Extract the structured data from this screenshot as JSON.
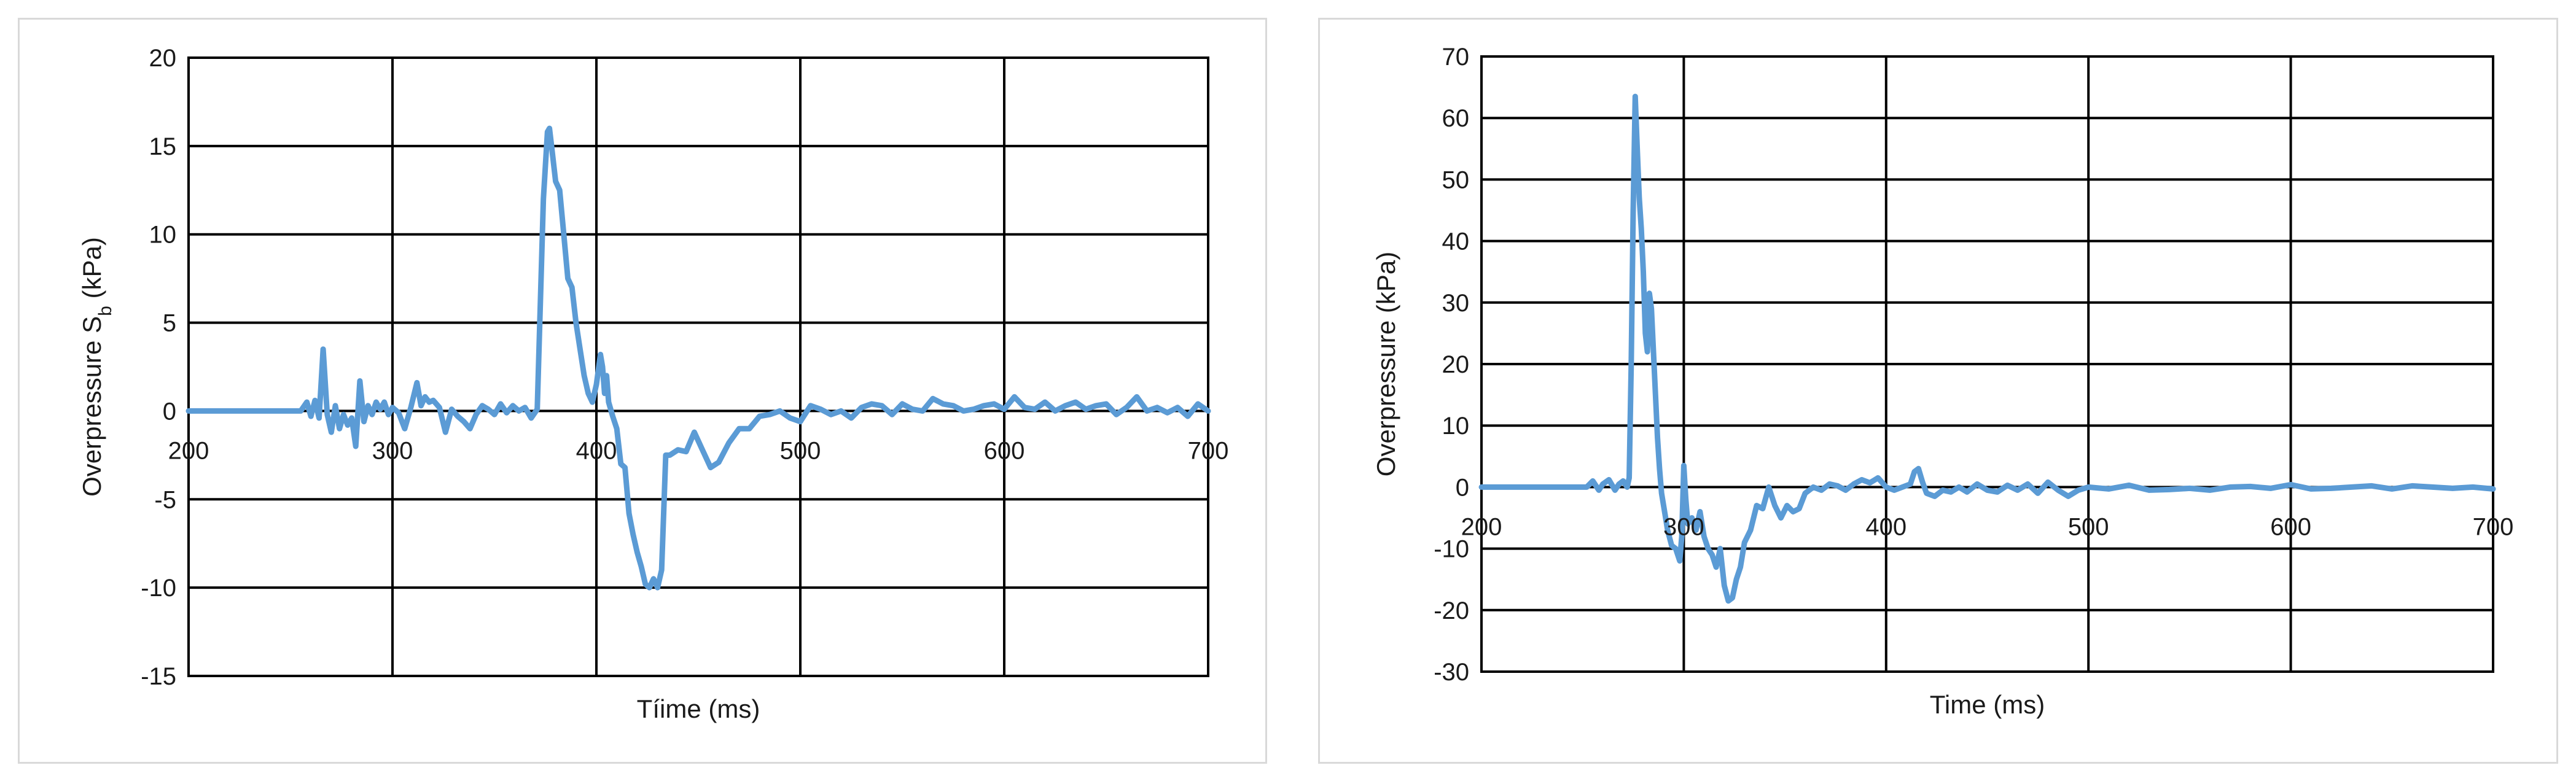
{
  "chart_data": [
    {
      "type": "line",
      "title": "",
      "xlabel": "Tíime (ms)",
      "ylabel_main": "Overpressure  S",
      "ylabel_sub": "b",
      "ylabel_end": " (kPa)",
      "xlim": [
        200,
        700
      ],
      "ylim": [
        -15,
        20
      ],
      "x_ticks": [
        200,
        300,
        400,
        500,
        600,
        700
      ],
      "y_ticks": [
        -15,
        -10,
        -5,
        0,
        5,
        10,
        15,
        20
      ],
      "x_tick_labels": [
        "200",
        "300",
        "400",
        "500",
        "600",
        "700"
      ],
      "y_tick_labels": [
        "-15",
        "-10",
        "-5",
        "0",
        "5",
        "10",
        "15",
        "20"
      ],
      "grid": true,
      "legend": "none",
      "color": "#5b9bd5",
      "series": [
        {
          "x": [
            200,
            255,
            258,
            260,
            262,
            264,
            266,
            268,
            270,
            272,
            274,
            276,
            278,
            280,
            282,
            284,
            286,
            288,
            290,
            292,
            294,
            296,
            298,
            300,
            303,
            306,
            309,
            312,
            314,
            316,
            318,
            320,
            323,
            326,
            329,
            332,
            335,
            338,
            341,
            344,
            347,
            350,
            353,
            356,
            359,
            362,
            365,
            368,
            371,
            374,
            376,
            377,
            378,
            380,
            382,
            384,
            386,
            388,
            390,
            392,
            394,
            396,
            398,
            400,
            402,
            403,
            404,
            405,
            406,
            408,
            410,
            412,
            414,
            416,
            418,
            420,
            422,
            424,
            426,
            428,
            430,
            432,
            434,
            436,
            440,
            444,
            448,
            452,
            456,
            460,
            465,
            470,
            475,
            480,
            485,
            490,
            495,
            500,
            505,
            510,
            515,
            520,
            525,
            530,
            535,
            540,
            545,
            550,
            555,
            560,
            565,
            570,
            575,
            580,
            585,
            590,
            595,
            600,
            605,
            610,
            615,
            620,
            625,
            630,
            635,
            640,
            645,
            650,
            655,
            660,
            665,
            670,
            675,
            680,
            685,
            690,
            695,
            700
          ],
          "y": [
            0,
            0,
            0.5,
            -0.3,
            0.6,
            -0.4,
            3.5,
            -0.2,
            -1.2,
            0.3,
            -1.0,
            -0.2,
            -0.8,
            -0.4,
            -2.0,
            1.7,
            -0.6,
            0.3,
            -0.2,
            0.5,
            0.1,
            0.5,
            -0.2,
            0.2,
            -0.1,
            -1.0,
            0.2,
            1.6,
            0.3,
            0.8,
            0.5,
            0.6,
            0.2,
            -1.2,
            0.1,
            -0.3,
            -0.6,
            -1.0,
            -0.2,
            0.3,
            0.1,
            -0.2,
            0.4,
            -0.1,
            0.3,
            0.0,
            0.2,
            -0.4,
            0.1,
            12.0,
            15.8,
            16.0,
            15.0,
            13.0,
            12.5,
            10.0,
            7.5,
            7.0,
            5.0,
            3.5,
            2.0,
            1.0,
            0.5,
            1.5,
            3.2,
            2.5,
            1.0,
            2.0,
            0.5,
            -0.3,
            -1.0,
            -3.0,
            -3.2,
            -5.8,
            -7.0,
            -8.0,
            -8.8,
            -9.8,
            -10.0,
            -9.5,
            -10.0,
            -9.0,
            -2.5,
            -2.5,
            -2.2,
            -2.3,
            -1.2,
            -2.2,
            -3.2,
            -2.9,
            -1.8,
            -1.0,
            -1.0,
            -0.3,
            -0.2,
            0.0,
            -0.4,
            -0.6,
            0.3,
            0.1,
            -0.2,
            0.0,
            -0.4,
            0.2,
            0.4,
            0.3,
            -0.2,
            0.4,
            0.1,
            0.0,
            0.7,
            0.4,
            0.3,
            0.0,
            0.1,
            0.3,
            0.4,
            0.1,
            0.8,
            0.2,
            0.1,
            0.5,
            0.0,
            0.3,
            0.5,
            0.1,
            0.3,
            0.4,
            -0.2,
            0.2,
            0.8,
            0.0,
            0.2,
            -0.1,
            0.2,
            -0.3,
            0.4,
            0.0
          ]
        }
      ]
    },
    {
      "type": "line",
      "title": "",
      "xlabel": "Time (ms)",
      "ylabel_main": "Overpressure (kPa)",
      "ylabel_sub": "",
      "ylabel_end": "",
      "xlim": [
        200,
        700
      ],
      "ylim": [
        -30,
        70
      ],
      "x_ticks": [
        200,
        300,
        400,
        500,
        600,
        700
      ],
      "y_ticks": [
        -30,
        -20,
        -10,
        0,
        10,
        20,
        30,
        40,
        50,
        60,
        70
      ],
      "x_tick_labels": [
        "200",
        "300",
        "400",
        "500",
        "600",
        "700"
      ],
      "y_tick_labels": [
        "-30",
        "-20",
        "-10",
        "0",
        "10",
        "20",
        "30",
        "40",
        "50",
        "60",
        "70"
      ],
      "grid": true,
      "legend": "none",
      "color": "#5b9bd5",
      "series": [
        {
          "x": [
            200,
            252,
            255,
            258,
            260,
            263,
            266,
            268,
            270,
            272,
            273,
            274,
            275,
            276,
            277,
            278,
            279,
            280,
            281,
            282,
            283,
            284,
            285,
            286,
            287,
            288,
            289,
            290,
            291,
            292,
            294,
            296,
            298,
            299,
            300,
            301,
            302,
            304,
            306,
            308,
            310,
            312,
            314,
            316,
            318,
            320,
            322,
            324,
            326,
            328,
            330,
            333,
            336,
            339,
            342,
            345,
            348,
            351,
            354,
            357,
            360,
            364,
            368,
            372,
            376,
            380,
            384,
            388,
            392,
            396,
            400,
            404,
            408,
            412,
            414,
            416,
            418,
            420,
            424,
            428,
            432,
            436,
            440,
            445,
            450,
            455,
            460,
            465,
            470,
            475,
            480,
            485,
            490,
            495,
            500,
            510,
            520,
            530,
            540,
            550,
            560,
            570,
            580,
            590,
            600,
            610,
            620,
            630,
            640,
            650,
            660,
            670,
            680,
            690,
            700
          ],
          "y": [
            0,
            0,
            1,
            -0.5,
            0.5,
            1.2,
            -0.5,
            0.5,
            1.0,
            0.0,
            1.5,
            20.0,
            45.0,
            63.5,
            55.0,
            47.0,
            42.0,
            35.0,
            25.0,
            22.0,
            31.5,
            29.0,
            22.0,
            15.0,
            8.0,
            3.0,
            -1.0,
            -3.0,
            -5.0,
            -7.0,
            -9.5,
            -10.0,
            -12.0,
            -8.0,
            3.5,
            -2.0,
            -6.0,
            -5.0,
            -7.0,
            -4.0,
            -8.0,
            -10.0,
            -11.0,
            -13.0,
            -10.0,
            -16.0,
            -18.5,
            -18.0,
            -15.0,
            -13.0,
            -9.0,
            -7.0,
            -3.0,
            -3.5,
            0.0,
            -3.0,
            -5.0,
            -3.0,
            -4.0,
            -3.5,
            -1.0,
            0.0,
            -0.5,
            0.5,
            0.2,
            -0.5,
            0.5,
            1.2,
            0.7,
            1.5,
            0.0,
            -0.5,
            0.0,
            0.5,
            2.5,
            3.0,
            0.8,
            -1.0,
            -1.5,
            -0.5,
            -0.8,
            0.0,
            -0.8,
            0.5,
            -0.5,
            -0.8,
            0.3,
            -0.5,
            0.5,
            -1.0,
            0.8,
            -0.5,
            -1.5,
            -0.5,
            0.0,
            -0.3,
            0.3,
            -0.5,
            -0.4,
            -0.2,
            -0.5,
            0.0,
            0.1,
            -0.2,
            0.4,
            -0.3,
            -0.2,
            0.0,
            0.2,
            -0.3,
            0.2,
            0.0,
            -0.2,
            0.0,
            -0.3
          ]
        }
      ]
    }
  ]
}
